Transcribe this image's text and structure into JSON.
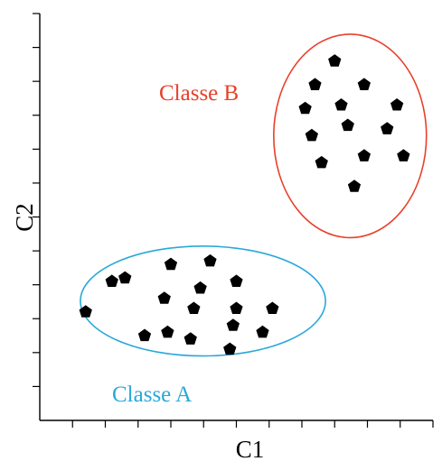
{
  "chart_data": {
    "type": "scatter",
    "xlabel": "C1",
    "ylabel": "C2",
    "xlim": [
      0,
      12
    ],
    "ylim": [
      0,
      12
    ],
    "x_ticks": [
      1,
      2,
      3,
      4,
      5,
      6,
      7,
      8,
      9,
      10,
      11,
      12
    ],
    "y_ticks": [
      1,
      2,
      3,
      4,
      5,
      6,
      7,
      8,
      9,
      10,
      11,
      12
    ],
    "grid": false,
    "series": [
      {
        "name": "Classe A",
        "color": "#29a8d9",
        "points": [
          [
            2.6,
            4.2
          ],
          [
            4.0,
            4.6
          ],
          [
            5.2,
            4.7
          ],
          [
            1.4,
            3.2
          ],
          [
            2.2,
            4.1
          ],
          [
            4.9,
            3.9
          ],
          [
            6.0,
            4.1
          ],
          [
            3.8,
            3.6
          ],
          [
            4.7,
            3.3
          ],
          [
            6.0,
            3.3
          ],
          [
            7.1,
            3.3
          ],
          [
            3.2,
            2.5
          ],
          [
            3.9,
            2.6
          ],
          [
            4.6,
            2.4
          ],
          [
            5.9,
            2.8
          ],
          [
            6.8,
            2.6
          ],
          [
            5.8,
            2.1
          ]
        ],
        "ellipse": {
          "cx": 4.98,
          "cy": 3.52,
          "rx": 3.74,
          "ry": 1.62
        }
      },
      {
        "name": "Classe B",
        "color": "#e8402a",
        "points": [
          [
            9.0,
            10.6
          ],
          [
            8.4,
            9.9
          ],
          [
            9.9,
            9.9
          ],
          [
            8.1,
            9.2
          ],
          [
            9.2,
            9.3
          ],
          [
            10.9,
            9.3
          ],
          [
            9.4,
            8.7
          ],
          [
            8.3,
            8.4
          ],
          [
            10.6,
            8.6
          ],
          [
            8.6,
            7.6
          ],
          [
            9.9,
            7.8
          ],
          [
            11.1,
            7.8
          ],
          [
            9.6,
            6.9
          ]
        ],
        "ellipse": {
          "cx": 9.47,
          "cy": 8.39,
          "rx": 2.33,
          "ry": 3.0
        }
      }
    ]
  }
}
